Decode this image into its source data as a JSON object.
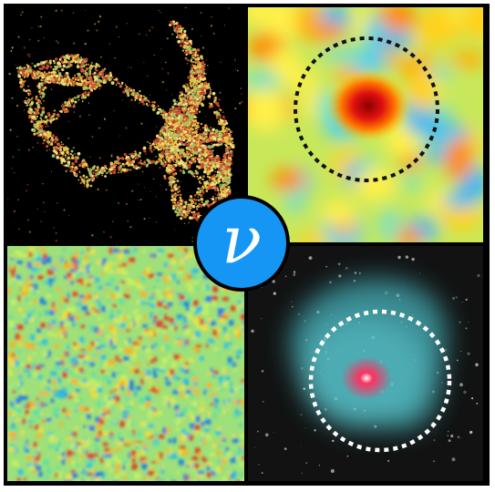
{
  "badge": {
    "symbol": "ν",
    "icon": "neutrino-symbol-icon",
    "color": "#1596f5"
  },
  "panels": [
    {
      "id": "cosmic-web",
      "icon": "galaxy-distribution-map"
    },
    {
      "id": "cmb-lensing",
      "icon": "temperature-map-with-dashed-circle"
    },
    {
      "id": "cmb-sky",
      "icon": "cmb-fluctuation-map"
    },
    {
      "id": "galaxy-cluster",
      "icon": "galaxy-cluster-image-with-dashed-circle"
    }
  ]
}
